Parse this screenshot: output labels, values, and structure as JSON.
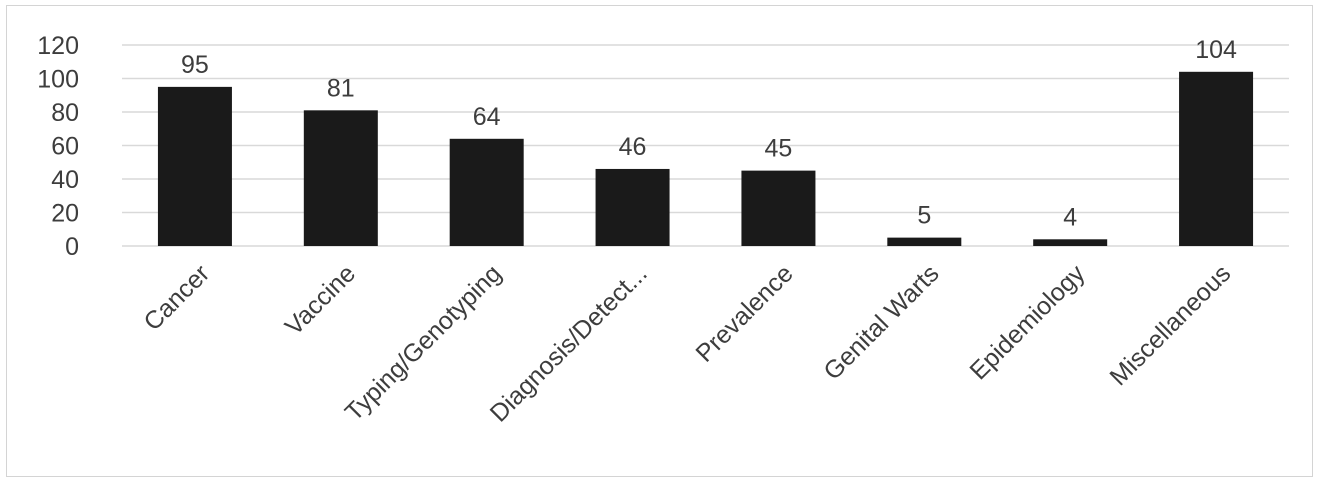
{
  "chart_data": {
    "type": "bar",
    "categories": [
      "Cancer",
      "Vaccine",
      "Typing/Genotyping",
      "Diagnosis/Detect...",
      "Prevalence",
      "Genital Warts",
      "Epidemiology",
      "Miscellaneous"
    ],
    "values": [
      95,
      81,
      64,
      46,
      45,
      5,
      4,
      104
    ],
    "data_labels": [
      "95",
      "81",
      "64",
      "46",
      "45",
      "5",
      "4",
      "104"
    ],
    "yticks": [
      "0",
      "20",
      "40",
      "60",
      "80",
      "100",
      "120"
    ],
    "ylim": [
      0,
      120
    ],
    "grid": true,
    "bar_color": "#1a1a1a",
    "grid_color": "#d9d9d9",
    "text_color": "#3d3d3d"
  }
}
